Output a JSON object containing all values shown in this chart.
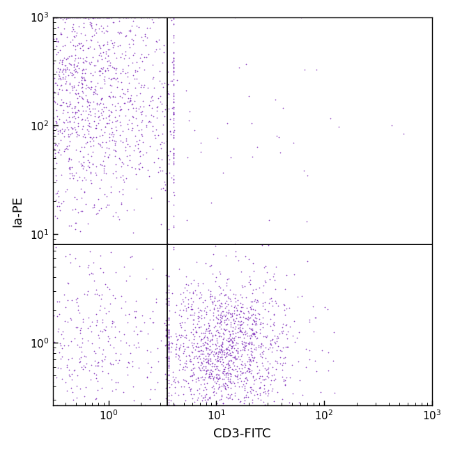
{
  "xlabel": "CD3-FITC",
  "ylabel": "Ia-PE",
  "dot_color": "#7B26B8",
  "background_color": "#ffffff",
  "gate_x": 3.5,
  "gate_y": 8.0,
  "dot_size": 1.5,
  "dot_alpha": 0.85,
  "seed": 42,
  "clusters": [
    {
      "name": "top_left_main",
      "n": 1800,
      "x_mean_log": -0.35,
      "x_sigma": 0.55,
      "y_mean_log": 2.25,
      "y_sigma": 0.55,
      "x_clip_min": 0.08,
      "x_clip_max": 4.0,
      "y_clip_min": 0.1,
      "y_clip_max": 1000
    },
    {
      "name": "top_right_sparse",
      "n": 45,
      "x_mean_log": 1.3,
      "x_sigma": 0.7,
      "y_mean_log": 1.8,
      "y_sigma": 0.6,
      "x_clip_min": 3.6,
      "x_clip_max": 1000,
      "y_clip_min": 8.1,
      "y_clip_max": 1000
    },
    {
      "name": "bottom_left",
      "n": 420,
      "x_mean_log": -0.2,
      "x_sigma": 0.45,
      "y_mean_log": 0.0,
      "y_sigma": 0.38,
      "x_clip_min": 0.08,
      "x_clip_max": 3.4,
      "y_clip_min": 0.1,
      "y_clip_max": 7.9
    },
    {
      "name": "bottom_right_Tcells",
      "n": 1400,
      "x_mean_log": 1.1,
      "x_sigma": 0.32,
      "y_mean_log": -0.05,
      "y_sigma": 0.32,
      "x_clip_min": 3.6,
      "x_clip_max": 300,
      "y_clip_min": 0.1,
      "y_clip_max": 7.9
    }
  ]
}
